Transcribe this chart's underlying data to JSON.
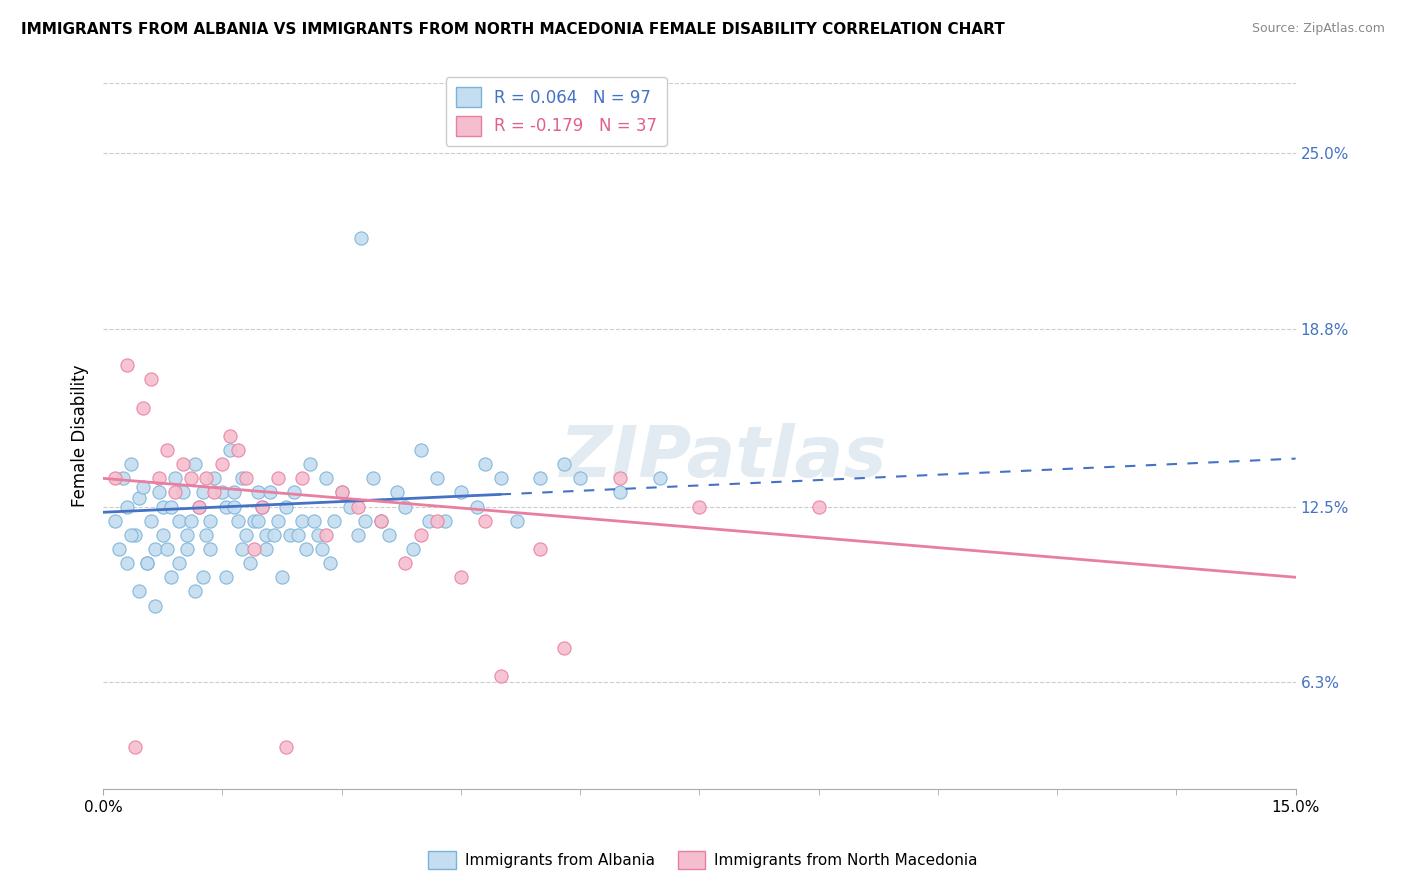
{
  "title": "IMMIGRANTS FROM ALBANIA VS IMMIGRANTS FROM NORTH MACEDONIA FEMALE DISABILITY CORRELATION CHART",
  "source": "Source: ZipAtlas.com",
  "ylabel": "Female Disability",
  "right_yticks": [
    6.3,
    12.5,
    18.8,
    25.0
  ],
  "right_ytick_labels": [
    "6.3%",
    "12.5%",
    "18.8%",
    "25.0%"
  ],
  "xlim": [
    0.0,
    15.0
  ],
  "ylim": [
    2.5,
    27.5
  ],
  "albania_color": "#7ab3d9",
  "albania_color_fill": "#c5ddf0",
  "nth_mac_color": "#e87fa0",
  "nth_mac_color_fill": "#f5bece",
  "albania_R": 0.064,
  "albania_N": 97,
  "nth_mac_R": -0.179,
  "nth_mac_N": 37,
  "legend_label1": "R = 0.064   N = 97",
  "legend_label2": "R = -0.179   N = 37",
  "watermark": "ZIPatlas",
  "albania_trend_x0": 0.0,
  "albania_trend_y0": 12.3,
  "albania_trend_x1": 15.0,
  "albania_trend_y1": 14.2,
  "nth_mac_trend_x0": 0.0,
  "nth_mac_trend_y0": 13.5,
  "nth_mac_trend_x1": 15.0,
  "nth_mac_trend_y1": 10.0,
  "albania_scatter_x": [
    0.15,
    0.2,
    0.25,
    0.3,
    0.35,
    0.4,
    0.45,
    0.5,
    0.55,
    0.6,
    0.65,
    0.7,
    0.75,
    0.8,
    0.85,
    0.9,
    0.95,
    1.0,
    1.05,
    1.1,
    1.15,
    1.2,
    1.25,
    1.3,
    1.35,
    1.4,
    1.5,
    1.55,
    1.6,
    1.65,
    1.7,
    1.75,
    1.8,
    1.9,
    1.95,
    2.0,
    2.05,
    2.1,
    2.2,
    2.3,
    2.4,
    2.5,
    2.6,
    2.7,
    2.8,
    2.9,
    3.0,
    3.1,
    3.2,
    3.3,
    3.4,
    3.5,
    3.6,
    3.7,
    3.8,
    3.9,
    4.0,
    4.1,
    4.2,
    4.3,
    4.5,
    4.7,
    4.8,
    5.0,
    5.2,
    5.5,
    5.8,
    6.0,
    6.5,
    7.0,
    0.3,
    0.35,
    0.45,
    0.55,
    0.65,
    0.75,
    0.85,
    0.95,
    1.05,
    1.15,
    1.25,
    1.35,
    1.55,
    1.65,
    1.75,
    1.85,
    1.95,
    2.05,
    2.15,
    2.25,
    2.35,
    2.45,
    2.55,
    2.65,
    2.75,
    2.85,
    3.25
  ],
  "albania_scatter_y": [
    12.0,
    11.0,
    13.5,
    12.5,
    14.0,
    11.5,
    12.8,
    13.2,
    10.5,
    12.0,
    11.0,
    13.0,
    12.5,
    11.0,
    12.5,
    13.5,
    12.0,
    13.0,
    11.5,
    12.0,
    14.0,
    12.5,
    13.0,
    11.5,
    12.0,
    13.5,
    13.0,
    12.5,
    14.5,
    13.0,
    12.0,
    13.5,
    11.5,
    12.0,
    13.0,
    12.5,
    11.5,
    13.0,
    12.0,
    12.5,
    13.0,
    12.0,
    14.0,
    11.5,
    13.5,
    12.0,
    13.0,
    12.5,
    11.5,
    12.0,
    13.5,
    12.0,
    11.5,
    13.0,
    12.5,
    11.0,
    14.5,
    12.0,
    13.5,
    12.0,
    13.0,
    12.5,
    14.0,
    13.5,
    12.0,
    13.5,
    14.0,
    13.5,
    13.0,
    13.5,
    10.5,
    11.5,
    9.5,
    10.5,
    9.0,
    11.5,
    10.0,
    10.5,
    11.0,
    9.5,
    10.0,
    11.0,
    10.0,
    12.5,
    11.0,
    10.5,
    12.0,
    11.0,
    11.5,
    10.0,
    11.5,
    11.5,
    11.0,
    12.0,
    11.0,
    10.5,
    22.0
  ],
  "nth_mac_scatter_x": [
    0.15,
    0.3,
    0.5,
    0.6,
    0.7,
    0.8,
    0.9,
    1.0,
    1.1,
    1.2,
    1.3,
    1.4,
    1.5,
    1.6,
    1.7,
    1.8,
    1.9,
    2.0,
    2.2,
    2.5,
    2.8,
    3.0,
    3.2,
    3.5,
    3.8,
    4.0,
    4.5,
    5.0,
    5.5,
    6.5,
    7.5,
    9.0,
    2.3,
    4.2,
    4.8,
    5.8,
    0.4
  ],
  "nth_mac_scatter_y": [
    13.5,
    17.5,
    16.0,
    17.0,
    13.5,
    14.5,
    13.0,
    14.0,
    13.5,
    12.5,
    13.5,
    13.0,
    14.0,
    15.0,
    14.5,
    13.5,
    11.0,
    12.5,
    13.5,
    13.5,
    11.5,
    13.0,
    12.5,
    12.0,
    10.5,
    11.5,
    10.0,
    6.5,
    11.0,
    13.5,
    12.5,
    12.5,
    4.0,
    12.0,
    12.0,
    7.5,
    4.0
  ]
}
